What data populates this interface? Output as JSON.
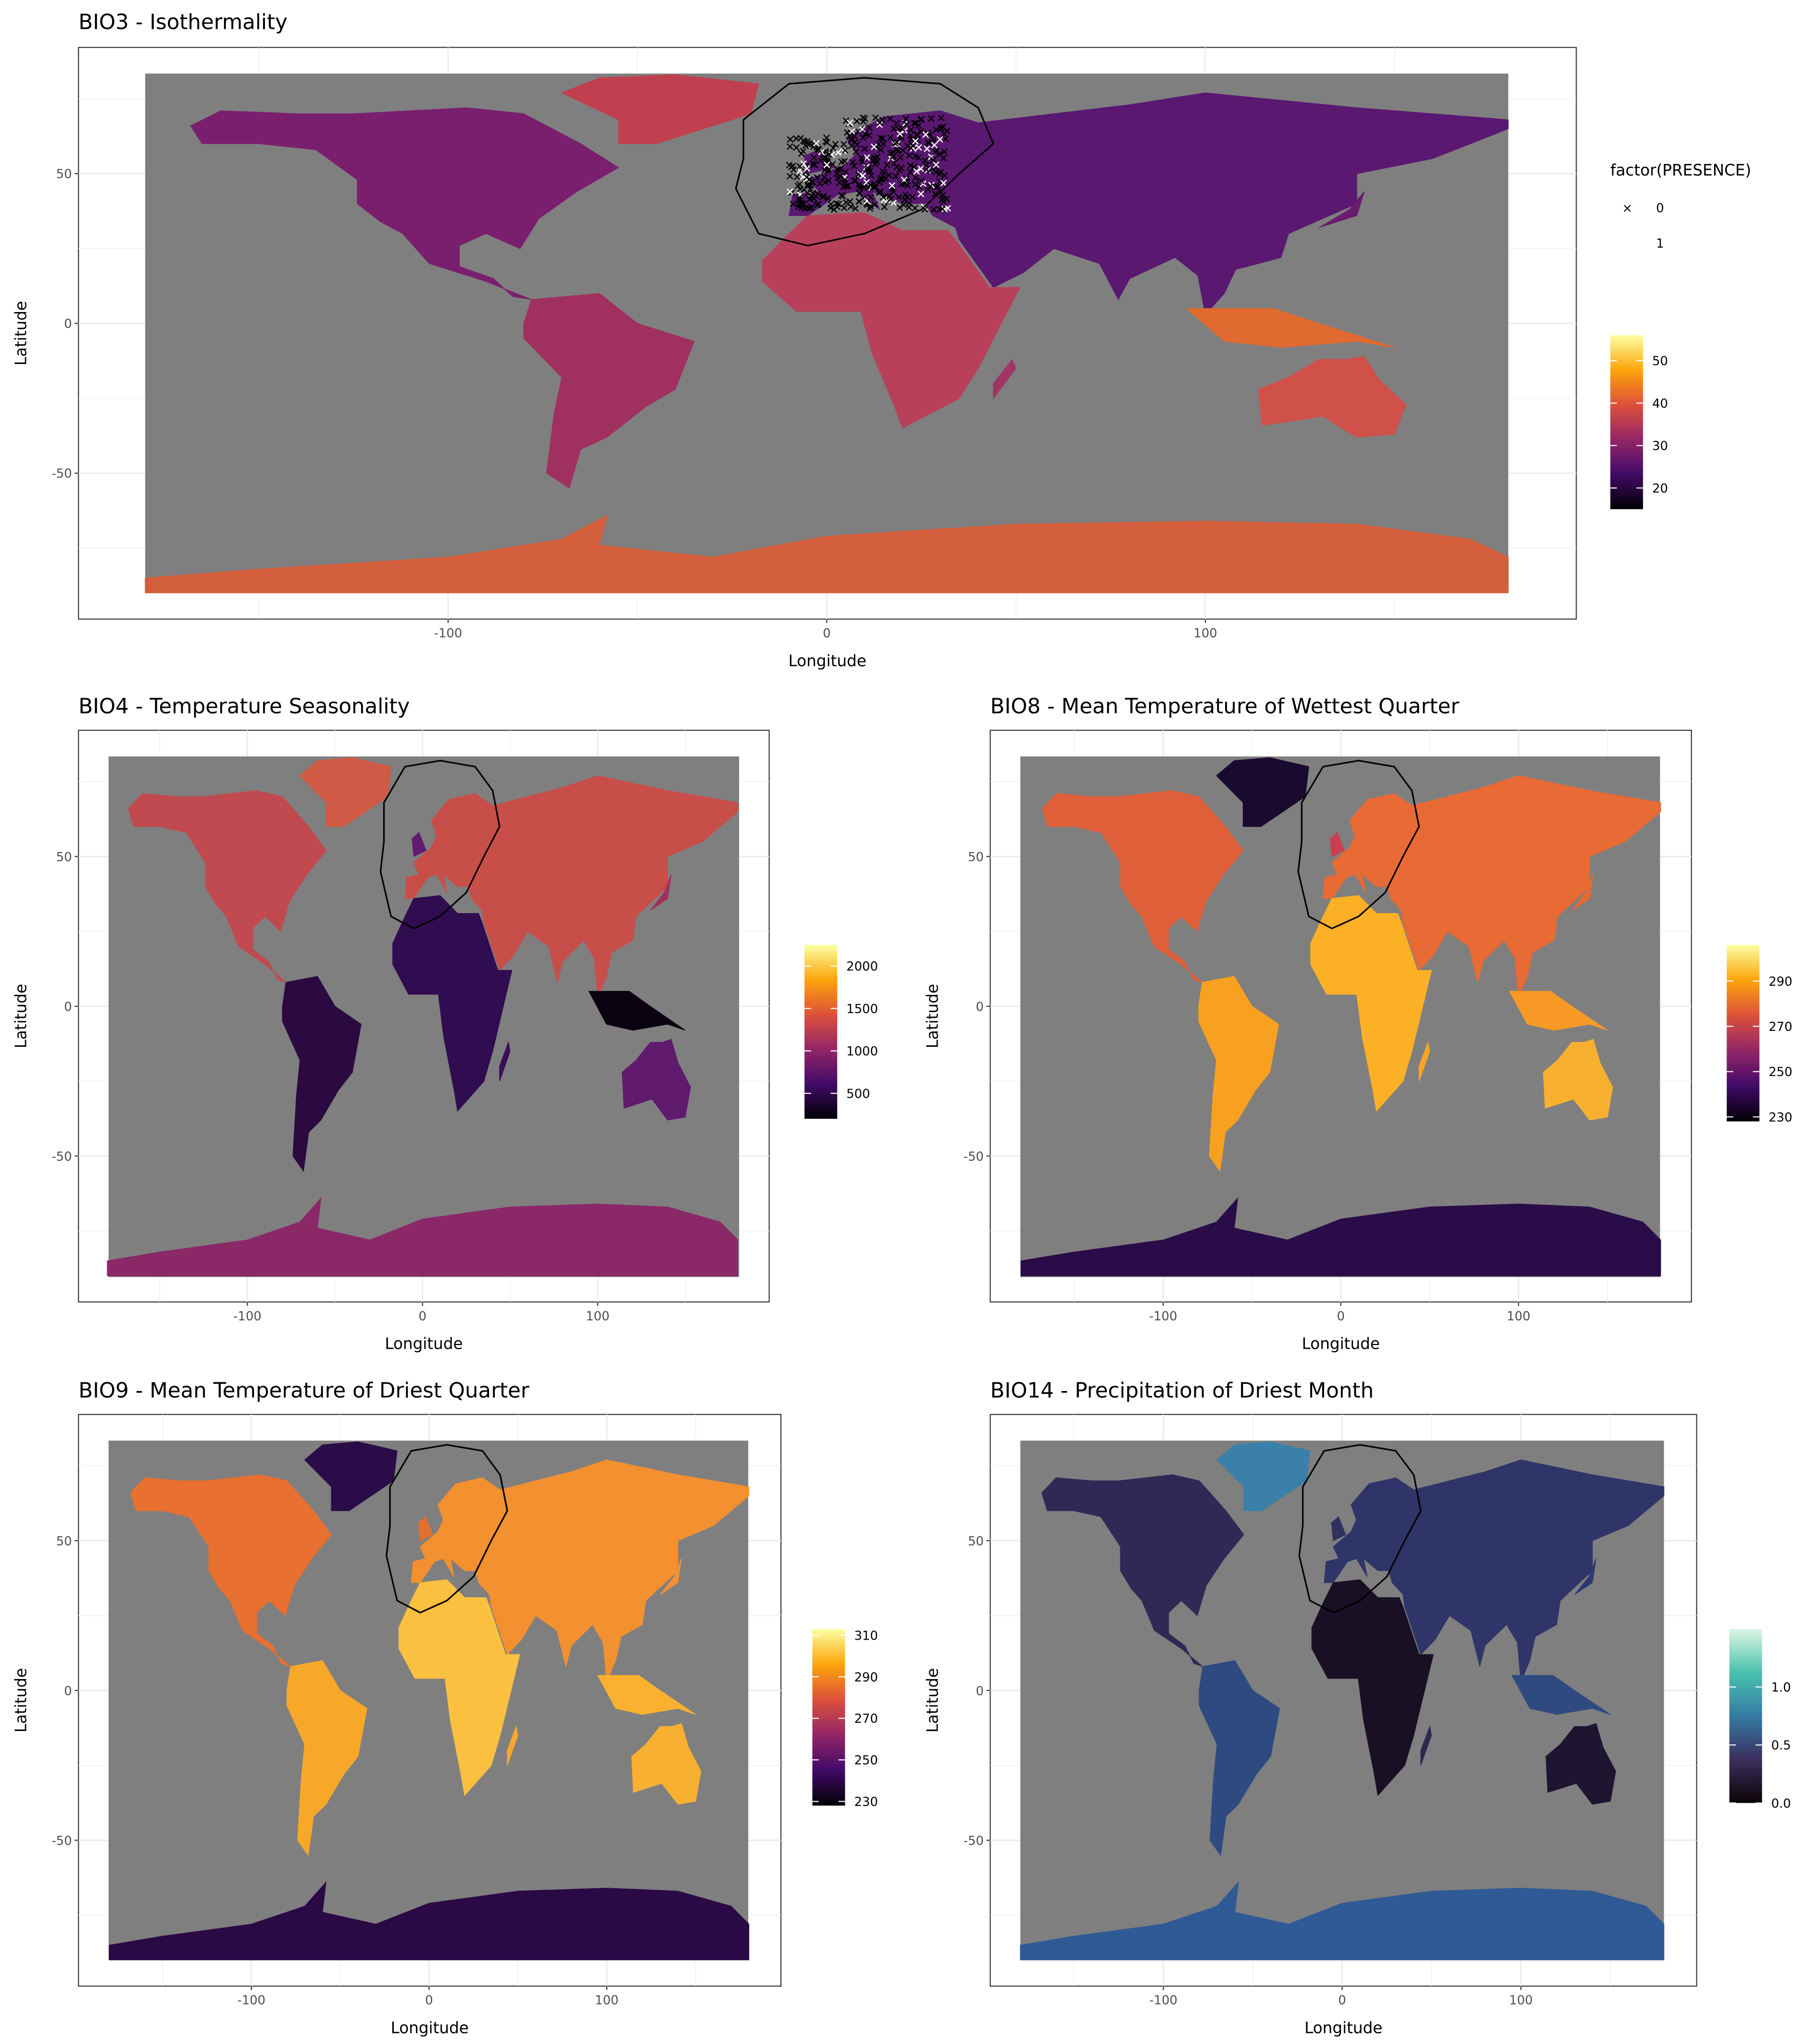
{
  "legend_shape": {
    "title": "factor(PRESENCE)",
    "levels": [
      {
        "label": "0",
        "symbol": "×"
      },
      {
        "label": "1",
        "symbol": ""
      }
    ]
  },
  "continent_order": [
    "north-america",
    "greenland",
    "south-america",
    "eurasia",
    "africa",
    "australia",
    "antarctica",
    "indonesia",
    "madagascar",
    "britain",
    "japan"
  ],
  "panels": [
    {
      "id": "bio3",
      "title": "BIO3 - Isothermality",
      "xlabel": "Longitude",
      "ylabel": "Latitude",
      "xticks": [
        "-100",
        "0",
        "100"
      ],
      "xtick_values": [
        -100,
        0,
        100
      ],
      "yticks": [
        "50",
        "0",
        "-50"
      ],
      "ytick_values": [
        50,
        0,
        -50
      ],
      "legend_ticks": [
        "50",
        "40",
        "30",
        "20"
      ],
      "legend_values": [
        50,
        40,
        30,
        20
      ],
      "legend_range": [
        15,
        56
      ],
      "gradient": [
        "#000004",
        "#420a68",
        "#932667",
        "#dd513a",
        "#fca50a",
        "#fcffa4"
      ],
      "fills": [
        "#7a1f6e",
        "#c0404f",
        "#a03060",
        "#5a1870",
        "#b8405a",
        "#d0504a",
        "#d35e3c",
        "#e06a30",
        "#a03565",
        "#5a1870",
        "#6a1c6e"
      ],
      "show_points": true
    },
    {
      "id": "bio4",
      "title": "BIO4 - Temperature Seasonality",
      "xlabel": "Longitude",
      "ylabel": "Latitude",
      "xticks": [
        "-100",
        "0",
        "100"
      ],
      "xtick_values": [
        -100,
        0,
        100
      ],
      "yticks": [
        "50",
        "0",
        "-50"
      ],
      "ytick_values": [
        50,
        0,
        -50
      ],
      "legend_ticks": [
        "2000",
        "1500",
        "1000",
        "500"
      ],
      "legend_values": [
        2000,
        1500,
        1000,
        500
      ],
      "legend_range": [
        200,
        2250
      ],
      "gradient": [
        "#000004",
        "#420a68",
        "#932667",
        "#dd513a",
        "#fca50a",
        "#fcffa4"
      ],
      "fills": [
        "#c04a50",
        "#d05a45",
        "#2a0a40",
        "#c84e4a",
        "#300c50",
        "#601a6e",
        "#8a2868",
        "#0a0210",
        "#3a0e5a",
        "#601a6e",
        "#a0305e"
      ],
      "show_points": false
    },
    {
      "id": "bio8",
      "title": "BIO8 - Mean Temperature of Wettest Quarter",
      "xlabel": "Longitude",
      "ylabel": "Latitude",
      "xticks": [
        "-100",
        "0",
        "100"
      ],
      "xtick_values": [
        -100,
        0,
        100
      ],
      "yticks": [
        "50",
        "0",
        "-50"
      ],
      "ytick_values": [
        50,
        0,
        -50
      ],
      "legend_ticks": [
        "290",
        "270",
        "250",
        "230"
      ],
      "legend_values": [
        290,
        270,
        250,
        230
      ],
      "legend_range": [
        228,
        306
      ],
      "gradient": [
        "#000004",
        "#420a68",
        "#932667",
        "#dd513a",
        "#fca50a",
        "#fcffa4"
      ],
      "fills": [
        "#e0603a",
        "#1a0a30",
        "#f8a020",
        "#e86a35",
        "#fbb025",
        "#f8b030",
        "#2a0c48",
        "#f89a25",
        "#f8a525",
        "#c84050",
        "#e66a30"
      ],
      "show_points": false
    },
    {
      "id": "bio9",
      "title": "BIO9 - Mean Temperature of Driest Quarter",
      "xlabel": "Longitude",
      "ylabel": "Latitude",
      "xticks": [
        "-100",
        "0",
        "100"
      ],
      "xtick_values": [
        -100,
        0,
        100
      ],
      "yticks": [
        "50",
        "0",
        "-50"
      ],
      "ytick_values": [
        50,
        0,
        -50
      ],
      "legend_ticks": [
        "310",
        "290",
        "270",
        "250",
        "230"
      ],
      "legend_values": [
        310,
        290,
        270,
        250,
        230
      ],
      "legend_range": [
        228,
        313
      ],
      "gradient": [
        "#000004",
        "#420a68",
        "#932667",
        "#dd513a",
        "#fca50a",
        "#fcffa4"
      ],
      "fills": [
        "#e87030",
        "#2a0c48",
        "#f8a828",
        "#f39030",
        "#fbc040",
        "#f8b030",
        "#2a0a45",
        "#fbb030",
        "#f8a828",
        "#e07030",
        "#f09035"
      ],
      "show_points": false
    },
    {
      "id": "bio14",
      "title": "BIO14 - Precipitation of Driest Month",
      "xlabel": "Longitude",
      "ylabel": "Latitude",
      "xticks": [
        "-100",
        "0",
        "100"
      ],
      "xtick_values": [
        -100,
        0,
        100
      ],
      "yticks": [
        "50",
        "0",
        "-50"
      ],
      "ytick_values": [
        50,
        0,
        -50
      ],
      "legend_ticks": [
        "1.0",
        "0.5",
        "0.0"
      ],
      "legend_values": [
        1.0,
        0.5,
        0.0
      ],
      "legend_range": [
        0,
        1.5
      ],
      "gradient": [
        "#0b0405",
        "#3b2f5e",
        "#357ba3",
        "#49c1ad",
        "#def5e5"
      ],
      "fills": [
        "#2e2a55",
        "#3a80a8",
        "#2f4a80",
        "#2f3568",
        "#1a1025",
        "#1e1530",
        "#2f5a95",
        "#2f4a80",
        "#2a2a50",
        "#303060",
        "#303a70"
      ],
      "show_points": false
    }
  ]
}
